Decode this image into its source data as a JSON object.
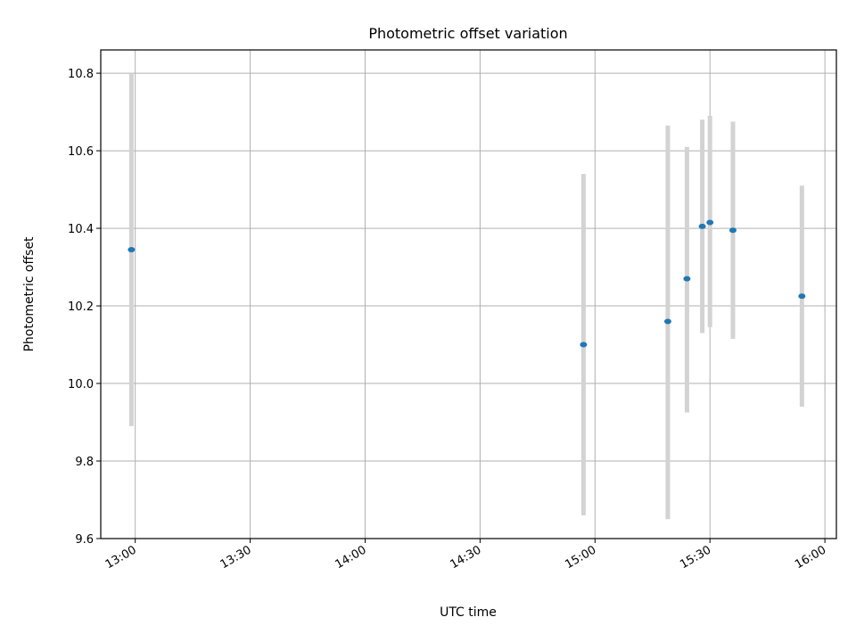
{
  "chart_data": {
    "type": "scatter",
    "title": "Photometric offset variation",
    "xlabel": "UTC time",
    "ylabel": "Photometric offset",
    "x_ticks": [
      "13:00",
      "13:30",
      "14:00",
      "14:30",
      "15:00",
      "15:30",
      "16:00"
    ],
    "y_ticks": [
      "9.6",
      "9.8",
      "10.0",
      "10.2",
      "10.4",
      "10.6",
      "10.8"
    ],
    "xlim": [
      "12:51",
      "16:03"
    ],
    "ylim": [
      9.6,
      10.86
    ],
    "grid": true,
    "series": [
      {
        "marker_color": "#1f77b4",
        "errorbar_color": "#d3d3d3",
        "points": [
          {
            "x": "12:59",
            "y": 10.345,
            "yerr_low": 9.89,
            "yerr_high": 10.8
          },
          {
            "x": "14:57",
            "y": 10.1,
            "yerr_low": 9.66,
            "yerr_high": 10.54
          },
          {
            "x": "15:19",
            "y": 10.16,
            "yerr_low": 9.65,
            "yerr_high": 10.665
          },
          {
            "x": "15:24",
            "y": 10.27,
            "yerr_low": 9.925,
            "yerr_high": 10.61
          },
          {
            "x": "15:28",
            "y": 10.405,
            "yerr_low": 10.13,
            "yerr_high": 10.68
          },
          {
            "x": "15:30",
            "y": 10.415,
            "yerr_low": 10.145,
            "yerr_high": 10.69
          },
          {
            "x": "15:36",
            "y": 10.395,
            "yerr_low": 10.115,
            "yerr_high": 10.675
          },
          {
            "x": "15:54",
            "y": 10.225,
            "yerr_low": 9.94,
            "yerr_high": 10.51
          }
        ]
      }
    ]
  }
}
